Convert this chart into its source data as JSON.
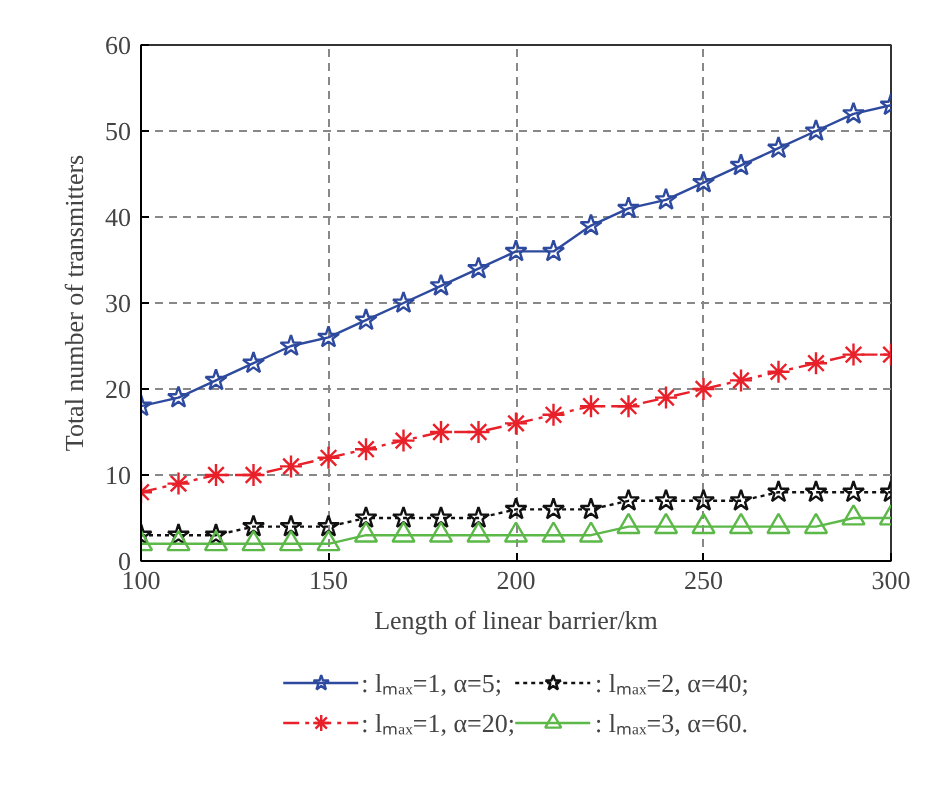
{
  "chart_data": {
    "type": "line",
    "xlabel": "Length of linear barrier/km",
    "ylabel": "Total number of transmitters",
    "x": [
      100,
      110,
      120,
      130,
      140,
      150,
      160,
      170,
      180,
      190,
      200,
      210,
      220,
      230,
      240,
      250,
      260,
      270,
      280,
      290,
      300
    ],
    "series": [
      {
        "name": ": lₘₐₓ=1, α=5;",
        "color": "#2e4a9e",
        "marker": "star",
        "line_style": "solid",
        "values": [
          18,
          19,
          21,
          23,
          25,
          26,
          28,
          30,
          32,
          34,
          36,
          36,
          39,
          41,
          42,
          44,
          46,
          48,
          50,
          52,
          53
        ]
      },
      {
        "name": ": lₘₐₓ=1, α=20;",
        "color": "#e8202a",
        "marker": "cross",
        "line_style": "dashed",
        "values": [
          8,
          9,
          10,
          10,
          11,
          12,
          13,
          14,
          15,
          15,
          16,
          17,
          18,
          18,
          19,
          20,
          21,
          22,
          23,
          24,
          24
        ]
      },
      {
        "name": ": lₘₐₓ=2, α=40;",
        "color": "#111111",
        "marker": "star",
        "line_style": "dotted",
        "values": [
          3,
          3,
          3,
          4,
          4,
          4,
          5,
          5,
          5,
          5,
          6,
          6,
          6,
          7,
          7,
          7,
          7,
          8,
          8,
          8,
          8
        ]
      },
      {
        "name": ": lₘₐₓ=3, α=60.",
        "color": "#5cb848",
        "marker": "triangle",
        "line_style": "solid",
        "values": [
          2,
          2,
          2,
          2,
          2,
          2,
          3,
          3,
          3,
          3,
          3,
          3,
          3,
          4,
          4,
          4,
          4,
          4,
          4,
          5,
          5
        ]
      }
    ],
    "xlim": [
      100,
      300
    ],
    "ylim": [
      0,
      60
    ],
    "xticks": [
      100,
      150,
      200,
      250,
      300
    ],
    "yticks": [
      0,
      10,
      20,
      30,
      40,
      50,
      60
    ],
    "grid": true,
    "legend": "bottom"
  }
}
